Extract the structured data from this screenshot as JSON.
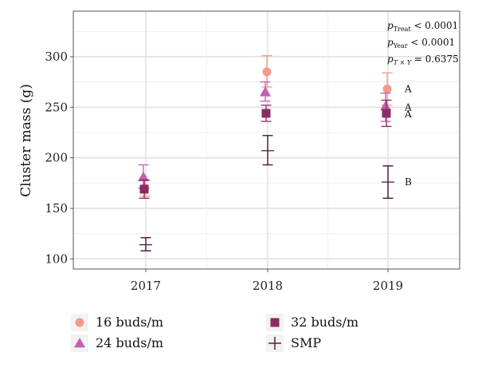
{
  "chart_data": {
    "type": "scatter",
    "xlabel": "",
    "ylabel": "Cluster mass (g)",
    "categories": [
      "2017",
      "2018",
      "2019"
    ],
    "ylim": [
      90,
      345
    ],
    "yticks": [
      "100",
      "150",
      "200",
      "250",
      "300"
    ],
    "grid": true,
    "legend_position": "bottom",
    "series": [
      {
        "name": "16 buds/m",
        "marker": "circle",
        "color": "#f4998a",
        "values": [
          170,
          285,
          268
        ],
        "error_low": [
          162,
          270,
          252
        ],
        "error_high": [
          178,
          301,
          284
        ]
      },
      {
        "name": "24 buds/m",
        "marker": "triangle",
        "color": "#c15fb3",
        "values": [
          181,
          265,
          251
        ],
        "error_low": [
          170,
          256,
          236
        ],
        "error_high": [
          193,
          275,
          264
        ]
      },
      {
        "name": "32 buds/m",
        "marker": "square",
        "color": "#8b2b63",
        "values": [
          169,
          244,
          244
        ],
        "error_low": [
          160,
          236,
          231
        ],
        "error_high": [
          178,
          252,
          257
        ]
      },
      {
        "name": "SMP",
        "marker": "plus",
        "color": "#4b1236",
        "values": [
          114,
          207,
          176
        ],
        "error_low": [
          108,
          193,
          160
        ],
        "error_high": [
          121,
          222,
          192
        ]
      }
    ],
    "significance_letters": [
      {
        "x": "2019",
        "y": 268,
        "label": "A"
      },
      {
        "x": "2019",
        "y": 250,
        "label": "A"
      },
      {
        "x": "2019",
        "y": 243,
        "label": "A"
      },
      {
        "x": "2019",
        "y": 176,
        "label": "B"
      }
    ],
    "annotations": {
      "treat": {
        "p": "p",
        "sub": "Treat",
        "rest": " < 0.0001"
      },
      "year": {
        "p": "p",
        "sub": "Year",
        "rest": " < 0.0001"
      },
      "interaction": {
        "p": "p",
        "sub": "T × Y",
        "rest": " = 0.6375"
      }
    }
  }
}
